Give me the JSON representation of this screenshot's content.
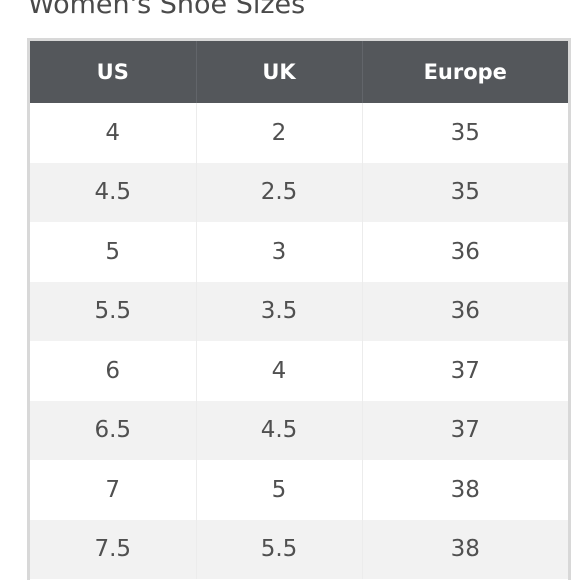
{
  "title": "Women's Shoe Sizes",
  "table": {
    "headers": [
      "US",
      "UK",
      "Europe"
    ],
    "rows": [
      [
        "4",
        "2",
        "35"
      ],
      [
        "4.5",
        "2.5",
        "35"
      ],
      [
        "5",
        "3",
        "36"
      ],
      [
        "5.5",
        "3.5",
        "36"
      ],
      [
        "6",
        "4",
        "37"
      ],
      [
        "6.5",
        "4.5",
        "37"
      ],
      [
        "7",
        "5",
        "38"
      ],
      [
        "7.5",
        "5.5",
        "38"
      ]
    ]
  },
  "colors": {
    "header_bg": "#54575b",
    "header_text": "#ffffff",
    "row_alt_bg": "#f2f2f2",
    "cell_text": "#505050",
    "border": "#d8d8d8"
  }
}
